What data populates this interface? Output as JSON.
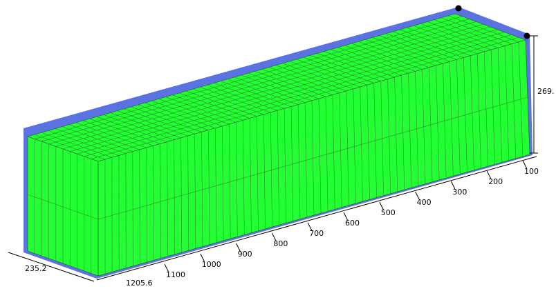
{
  "axes": {
    "width_end": "235.2",
    "length_end": "1205.6",
    "length_ticks": [
      "1100",
      "1000",
      "900",
      "800",
      "700",
      "600",
      "500",
      "400",
      "300",
      "200",
      "100"
    ],
    "height_end": "269."
  }
}
